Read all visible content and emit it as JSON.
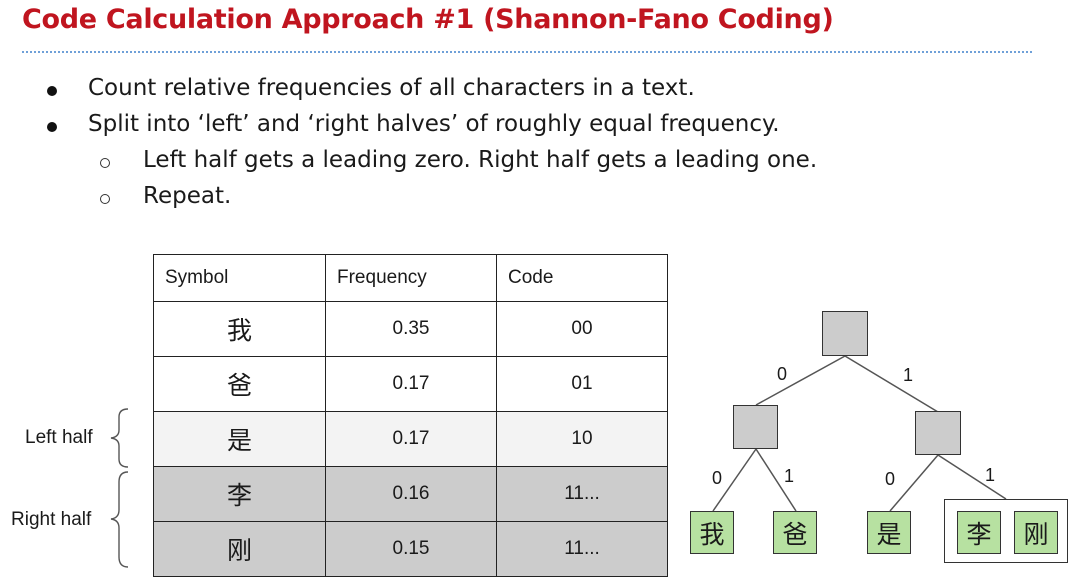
{
  "title": "Code Calculation Approach #1 (Shannon-Fano Coding)",
  "bullets": [
    "Count relative frequencies of all characters in a text.",
    "Split into ‘left’ and ‘right halves’ of roughly equal frequency."
  ],
  "sub_bullets": [
    "Left half gets a leading zero. Right half gets a leading one.",
    "Repeat."
  ],
  "table": {
    "headers": [
      "Symbol",
      "Frequency",
      "Code"
    ],
    "rows": [
      {
        "symbol": "我",
        "frequency": "0.35",
        "code": "00"
      },
      {
        "symbol": "爸",
        "frequency": "0.17",
        "code": "01"
      },
      {
        "symbol": "是",
        "frequency": "0.17",
        "code": "10"
      },
      {
        "symbol": "李",
        "frequency": "0.16",
        "code": "11..."
      },
      {
        "symbol": "刚",
        "frequency": "0.15",
        "code": "11..."
      }
    ]
  },
  "labels": {
    "left_half": "Left half",
    "right_half": "Right half"
  },
  "tree": {
    "edge_labels": {
      "root_left": "0",
      "root_right": "1",
      "left_left": "0",
      "left_right": "1",
      "right_left": "0",
      "right_right": "1"
    },
    "leaves": [
      "我",
      "爸",
      "是",
      "李",
      "刚"
    ]
  },
  "colors": {
    "title": "#c0151f",
    "divider": "#6fa0d8",
    "leaf_fill": "#b7e1a1",
    "node_fill": "#cccccc",
    "light_row": "#f3f3f3",
    "dark_row": "#cccccc"
  }
}
